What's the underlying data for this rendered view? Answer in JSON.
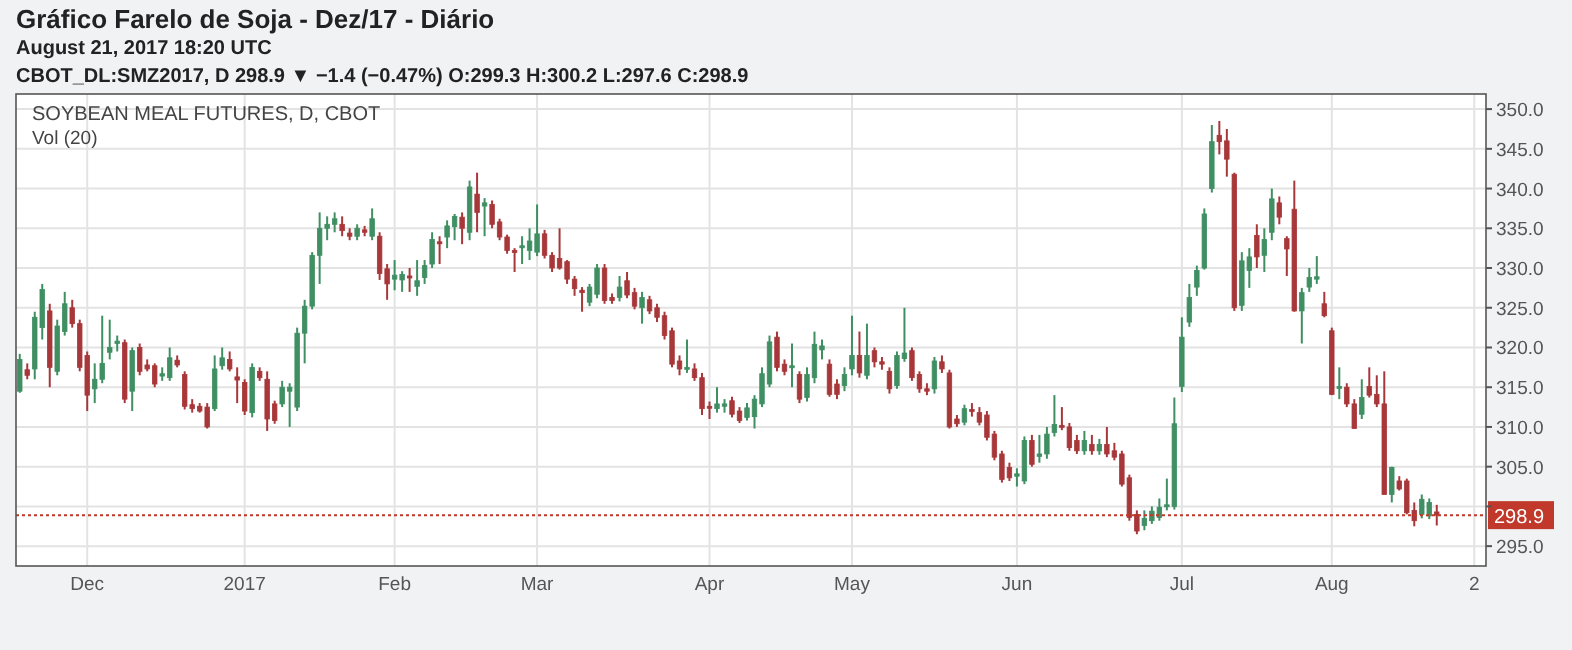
{
  "chart_data": {
    "type": "candlestick",
    "title": "Gráfico Farelo de Soja - Dez/17 - Diário",
    "subtitle": "CBOT_DL:SMZ2017, D  298.9 ▼ −1.4 (−0.47%) O:299.3 H:300.2 L:297.6 C:298.9",
    "annotations": [
      "August 21, 2017 18:20 UTC",
      "SOYBEAN MEAL FUTURES, D, CBOT",
      "Vol (20)"
    ],
    "categories": [
      null,
      null,
      null,
      null,
      null,
      null,
      null,
      null,
      null,
      "Dec",
      null,
      null,
      null,
      null,
      null,
      null,
      null,
      null,
      null,
      null,
      null,
      null,
      null,
      null,
      null,
      null,
      null,
      null,
      null,
      null,
      "2017",
      null,
      null,
      null,
      null,
      null,
      null,
      null,
      null,
      null,
      null,
      null,
      null,
      null,
      null,
      null,
      null,
      null,
      null,
      null,
      "Feb",
      null,
      null,
      null,
      null,
      null,
      null,
      null,
      null,
      null,
      null,
      null,
      null,
      null,
      null,
      null,
      null,
      null,
      null,
      "Mar",
      null,
      null,
      null,
      null,
      null,
      null,
      null,
      null,
      null,
      null,
      null,
      null,
      null,
      null,
      null,
      null,
      null,
      null,
      null,
      null,
      null,
      null,
      "Apr",
      null,
      null,
      null,
      null,
      null,
      null,
      null,
      null,
      null,
      null,
      null,
      null,
      null,
      null,
      null,
      null,
      null,
      null,
      "May",
      null,
      null,
      null,
      null,
      null,
      null,
      null,
      null,
      null,
      null,
      null,
      null,
      null,
      null,
      null,
      null,
      null,
      null,
      null,
      null,
      null,
      "Jun",
      null,
      null,
      null,
      null,
      null,
      null,
      null,
      null,
      null,
      null,
      null,
      null,
      null,
      null,
      null,
      null,
      null,
      null,
      null,
      null,
      null,
      "Jul",
      null,
      null,
      null,
      null,
      null,
      null,
      null,
      null,
      null,
      null,
      null,
      null,
      null,
      null,
      null,
      null,
      null,
      null,
      null,
      "Aug",
      null,
      null,
      null,
      null,
      null,
      null,
      null,
      null,
      null,
      null,
      null,
      null,
      null,
      null,
      null,
      null,
      null,
      null,
      "2"
    ],
    "ohlc": [
      [
        314.5,
        319.2,
        314.3,
        318.5
      ],
      [
        317.2,
        318,
        316,
        316.5
      ],
      [
        317.3,
        324.5,
        316,
        323.8
      ],
      [
        322.5,
        328,
        321,
        327.3
      ],
      [
        324.6,
        325.5,
        315,
        317.5
      ],
      [
        317,
        323.5,
        316.5,
        322.7
      ],
      [
        322,
        327,
        321.5,
        325.5
      ],
      [
        325,
        326,
        322.5,
        323
      ],
      [
        323,
        323.5,
        317,
        317.5
      ],
      [
        319,
        319.5,
        312,
        314
      ],
      [
        314.8,
        318,
        313,
        316
      ],
      [
        316,
        324,
        315.5,
        318
      ],
      [
        319.4,
        323.5,
        318.5,
        320
      ],
      [
        320.5,
        321.5,
        319.5,
        320.8
      ],
      [
        320.6,
        321,
        313,
        313.5
      ],
      [
        314.5,
        320,
        312,
        319.6
      ],
      [
        320,
        320.5,
        316.5,
        317
      ],
      [
        317.8,
        318.5,
        317,
        317.3
      ],
      [
        317.7,
        318,
        315,
        315.4
      ],
      [
        316.4,
        317.5,
        315.8,
        316.7
      ],
      [
        316.2,
        320,
        315.8,
        318.7
      ],
      [
        318.4,
        319,
        317.5,
        317.8
      ],
      [
        316.6,
        317,
        312.2,
        312.6
      ],
      [
        312.8,
        313.5,
        311.8,
        312.3
      ],
      [
        312.6,
        313,
        311.8,
        312
      ],
      [
        312.5,
        313,
        309.8,
        310
      ],
      [
        312.3,
        319,
        312,
        317.3
      ],
      [
        317.7,
        320,
        317.2,
        318.7
      ],
      [
        318.5,
        319.5,
        317,
        317.3
      ],
      [
        316.3,
        317.5,
        313,
        315.9
      ],
      [
        315.6,
        316,
        311.5,
        312
      ],
      [
        311.8,
        318,
        311.2,
        317.5
      ],
      [
        317,
        317.5,
        315.8,
        316.2
      ],
      [
        316,
        317,
        309.5,
        311
      ],
      [
        312.9,
        313.3,
        310.4,
        310.8
      ],
      [
        312.9,
        315.8,
        312.5,
        315
      ],
      [
        314.5,
        315.5,
        310,
        315
      ],
      [
        312.5,
        322.5,
        312,
        321.8
      ],
      [
        321.8,
        326,
        318,
        325.2
      ],
      [
        325.2,
        332,
        324.8,
        331.6
      ],
      [
        331.6,
        337,
        328,
        335
      ],
      [
        335,
        336.5,
        333.5,
        335.5
      ],
      [
        335.5,
        337,
        334.5,
        336.2
      ],
      [
        335.5,
        336.5,
        334,
        334.7
      ],
      [
        334.4,
        335,
        333.5,
        334
      ],
      [
        334,
        335.5,
        333.5,
        335
      ],
      [
        334.8,
        335.3,
        334,
        334.5
      ],
      [
        334,
        337.5,
        333.5,
        336.2
      ],
      [
        334,
        334.5,
        328.5,
        329.3
      ],
      [
        329.9,
        330.5,
        326,
        328
      ],
      [
        328.6,
        331,
        327.2,
        329.1
      ],
      [
        328.5,
        329.6,
        327,
        329.2
      ],
      [
        329,
        330,
        327,
        328.8
      ],
      [
        327.7,
        331,
        326.5,
        328.4
      ],
      [
        328.8,
        331,
        328,
        330.3
      ],
      [
        330.5,
        334.5,
        330,
        333.6
      ],
      [
        333.3,
        334,
        330.5,
        333.1
      ],
      [
        333.9,
        336,
        332.5,
        335.3
      ],
      [
        335.2,
        336.8,
        333.5,
        336.5
      ],
      [
        336.4,
        337,
        333,
        335
      ],
      [
        334.5,
        341,
        333.5,
        340.2
      ],
      [
        339.3,
        342,
        334.5,
        337
      ],
      [
        337.8,
        338.8,
        334,
        338.2
      ],
      [
        338,
        338.5,
        335,
        335.5
      ],
      [
        335.8,
        336.2,
        333.5,
        333.9
      ],
      [
        333.9,
        334.2,
        331.8,
        332.2
      ],
      [
        332.2,
        332.5,
        329.5,
        332
      ],
      [
        332.6,
        334,
        330.5,
        332.8
      ],
      [
        332.2,
        335,
        331,
        333.4
      ],
      [
        332,
        338,
        331.5,
        334.3
      ],
      [
        334.3,
        334.8,
        331.2,
        331.6
      ],
      [
        331.6,
        332,
        329.5,
        330
      ],
      [
        331.2,
        335,
        329.8,
        330
      ],
      [
        330.8,
        331,
        328,
        328.6
      ],
      [
        328.6,
        329,
        326.5,
        327.4
      ],
      [
        327.2,
        327.6,
        324.5,
        326.9
      ],
      [
        325.7,
        328,
        325.2,
        327.6
      ],
      [
        326.7,
        330.5,
        326.2,
        330
      ],
      [
        330,
        330.5,
        325.5,
        325.9
      ],
      [
        326.3,
        326.8,
        325.5,
        325.9
      ],
      [
        326.3,
        329,
        325.8,
        327.6
      ],
      [
        328.4,
        329.5,
        326.2,
        326.6
      ],
      [
        326.9,
        327.5,
        324.8,
        325.2
      ],
      [
        325,
        327,
        323,
        326.3
      ],
      [
        326,
        326.5,
        324.2,
        324.6
      ],
      [
        325,
        325.5,
        323.2,
        323.8
      ],
      [
        324,
        324.5,
        321,
        321.5
      ],
      [
        322.1,
        322.5,
        317.5,
        317.9
      ],
      [
        318.3,
        319,
        316.5,
        317.3
      ],
      [
        317.3,
        321,
        316.8,
        317.5
      ],
      [
        317.3,
        318,
        315.8,
        316.2
      ],
      [
        316.2,
        316.8,
        311.5,
        312.3
      ],
      [
        312.6,
        313.2,
        311,
        312.4
      ],
      [
        312.3,
        315,
        311.8,
        312.9
      ],
      [
        312.6,
        313.5,
        311.8,
        312.9
      ],
      [
        313.3,
        313.8,
        311.2,
        311.6
      ],
      [
        312,
        312.5,
        310.5,
        310.8
      ],
      [
        311.2,
        313,
        310.8,
        312.4
      ],
      [
        311.3,
        314,
        309.8,
        313.5
      ],
      [
        312.9,
        317.5,
        312.5,
        316.7
      ],
      [
        315.4,
        321.5,
        315,
        320.7
      ],
      [
        321.3,
        322,
        317,
        317.5
      ],
      [
        317.9,
        318.5,
        316.5,
        317
      ],
      [
        317.5,
        320.5,
        315,
        317.7
      ],
      [
        316.6,
        317,
        313,
        313.5
      ],
      [
        313.7,
        317.5,
        313.2,
        316.6
      ],
      [
        316.2,
        322,
        315.5,
        320.4
      ],
      [
        319.7,
        321,
        318.5,
        320.2
      ],
      [
        317.9,
        318.5,
        313.8,
        314.1
      ],
      [
        315.4,
        316,
        313.5,
        314.1
      ],
      [
        315.2,
        317.5,
        314.5,
        316.6
      ],
      [
        317.3,
        324,
        316.5,
        319
      ],
      [
        319,
        322,
        316.2,
        316.8
      ],
      [
        316.5,
        323,
        316,
        319
      ],
      [
        319.6,
        320,
        317.5,
        318.2
      ],
      [
        318.2,
        318.8,
        317.2,
        317.9
      ],
      [
        317,
        317.5,
        314.2,
        314.8
      ],
      [
        315.2,
        319.5,
        314.8,
        319
      ],
      [
        318.6,
        325,
        318.2,
        319.3
      ],
      [
        319.6,
        320,
        315.8,
        316.2
      ],
      [
        316.6,
        317,
        314.3,
        314.8
      ],
      [
        314.8,
        315.5,
        314,
        314.5
      ],
      [
        314.8,
        318.8,
        314.2,
        318.3
      ],
      [
        318.2,
        319,
        316.8,
        317.3
      ],
      [
        316.8,
        317.2,
        309.8,
        310
      ],
      [
        311,
        311.5,
        310,
        310.4
      ],
      [
        310.6,
        312.8,
        310.2,
        312.3
      ],
      [
        312.2,
        313,
        311.3,
        312
      ],
      [
        311.8,
        312.5,
        310.2,
        310.6
      ],
      [
        311.5,
        312,
        308.3,
        308.7
      ],
      [
        309.1,
        309.5,
        305.8,
        306.2
      ],
      [
        306.6,
        307,
        303,
        303.4
      ],
      [
        304.9,
        305.5,
        303.2,
        303.6
      ],
      [
        303.8,
        304.8,
        302.5,
        304.1
      ],
      [
        303.2,
        308.8,
        302.8,
        308.3
      ],
      [
        308.3,
        309,
        305,
        305.3
      ],
      [
        306.3,
        309,
        305.5,
        306.6
      ],
      [
        306.6,
        310,
        306,
        309.1
      ],
      [
        309.3,
        314,
        308.8,
        310.3
      ],
      [
        310.2,
        312.5,
        309.6,
        310.1
      ],
      [
        310,
        310.5,
        307,
        307.4
      ],
      [
        308.3,
        309,
        306.6,
        307
      ],
      [
        307,
        309.5,
        306.5,
        308.3
      ],
      [
        307.8,
        309,
        306.5,
        307
      ],
      [
        307,
        308.5,
        306.5,
        307.8
      ],
      [
        307.8,
        310,
        306.2,
        306.6
      ],
      [
        307,
        308,
        305.8,
        306.2
      ],
      [
        306.6,
        307,
        302.5,
        302.8
      ],
      [
        303.6,
        304,
        298.2,
        298.6
      ],
      [
        299,
        299.5,
        296.5,
        296.9
      ],
      [
        297.6,
        299.5,
        297,
        298.5
      ],
      [
        298.2,
        300,
        297.8,
        299.4
      ],
      [
        298.6,
        301,
        298.2,
        299.9
      ],
      [
        300,
        303.5,
        299.5,
        300.2
      ],
      [
        300,
        313.7,
        299.6,
        310.4
      ],
      [
        315.1,
        323.8,
        314.4,
        321.3
      ],
      [
        323.2,
        328,
        322.6,
        326.3
      ],
      [
        327.6,
        330.3,
        326.5,
        329.7
      ],
      [
        330,
        337.5,
        329.8,
        336.8
      ],
      [
        340,
        348,
        339.5,
        345.9
      ],
      [
        346.7,
        348.5,
        344.3,
        345.9
      ],
      [
        346,
        347.5,
        341.5,
        343.7
      ],
      [
        341.8,
        342,
        324.6,
        325
      ],
      [
        325.3,
        332,
        324.6,
        330.9
      ],
      [
        329.7,
        332.5,
        327.5,
        331.4
      ],
      [
        334.1,
        335.5,
        330,
        331.4
      ],
      [
        331.6,
        335,
        329.5,
        333.6
      ],
      [
        334.5,
        340,
        333.5,
        338.7
      ],
      [
        338.2,
        339,
        335.5,
        336.4
      ],
      [
        333.7,
        334,
        329,
        332.4
      ],
      [
        337.4,
        341,
        324.5,
        324.6
      ],
      [
        324.6,
        327.5,
        320.5,
        326.9
      ],
      [
        327.6,
        330,
        327,
        328.8
      ],
      [
        328.6,
        331.5,
        328,
        328.9
      ],
      [
        325.5,
        327,
        323.8,
        324
      ],
      [
        322.1,
        322.5,
        314,
        314.1
      ],
      [
        315,
        317.5,
        313.5,
        315.1
      ],
      [
        315,
        315.5,
        312.5,
        312.9
      ],
      [
        312.9,
        313.5,
        309.8,
        309.8
      ],
      [
        311.6,
        316,
        311,
        313.7
      ],
      [
        315.1,
        317.5,
        313.7,
        314
      ],
      [
        314.1,
        316.5,
        312.5,
        312.9
      ],
      [
        312.9,
        317,
        301.5,
        301.5
      ],
      [
        301.5,
        305,
        300.5,
        304.9
      ],
      [
        303.2,
        303.8,
        302,
        302.2
      ],
      [
        303.2,
        303.5,
        299,
        299.2
      ],
      [
        299.5,
        300.5,
        297.5,
        298.2
      ],
      [
        299,
        301.5,
        298.5,
        300.9
      ],
      [
        298.8,
        301,
        298.4,
        300.5
      ],
      [
        299.3,
        300.2,
        297.6,
        298.9
      ],
      null,
      null,
      null,
      null,
      null
    ],
    "ylim": [
      292.5,
      351.9
    ],
    "yticks": [
      {
        "value": 295,
        "label": "295.0"
      },
      {
        "value": 300,
        "label": null
      },
      {
        "value": 305,
        "label": "305.0"
      },
      {
        "value": 310,
        "label": "310.0"
      },
      {
        "value": 315,
        "label": "315.0"
      },
      {
        "value": 320,
        "label": "320.0"
      },
      {
        "value": 325,
        "label": "325.0"
      },
      {
        "value": 330,
        "label": "330.0"
      },
      {
        "value": 335,
        "label": "335.0"
      },
      {
        "value": 340,
        "label": "340.0"
      },
      {
        "value": 345,
        "label": "345.0"
      },
      {
        "value": 350,
        "label": "350.0"
      }
    ],
    "ref_lines": [
      {
        "axis": "y",
        "value": 298.9,
        "label": "298.9",
        "color": "#c0392b",
        "line_style": "dotted"
      }
    ],
    "grid": true
  }
}
